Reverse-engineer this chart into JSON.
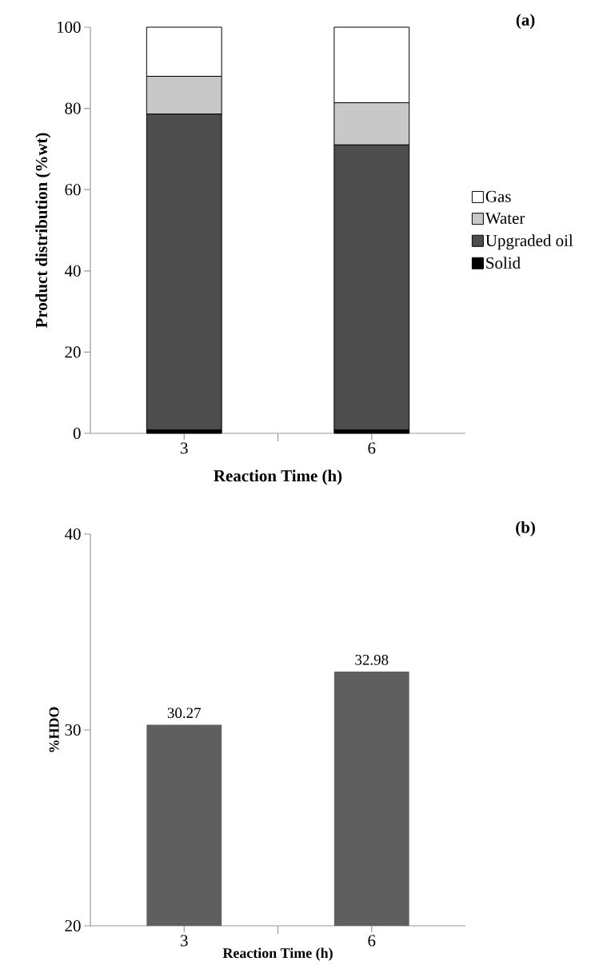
{
  "chart_data": [
    {
      "type": "bar",
      "stacked": true,
      "xlabel": "Reaction  Time (h)",
      "ylabel": "Product distribution (%wt)",
      "categories": [
        "3",
        "6"
      ],
      "series": [
        {
          "name": "Solid",
          "color": "#000000",
          "values": [
            0.8,
            0.8
          ]
        },
        {
          "name": "Upgraded oil",
          "color": "#4d4d4d",
          "values": [
            77.8,
            70.2
          ]
        },
        {
          "name": "Water",
          "color": "#c8c8c8",
          "values": [
            9.3,
            10.4
          ]
        },
        {
          "name": "Gas",
          "color": "#ffffff",
          "values": [
            12.1,
            18.6
          ]
        }
      ],
      "ylim": [
        0,
        100
      ],
      "yticks": [
        0,
        20,
        40,
        60,
        80,
        100
      ],
      "legend": "right",
      "annotations": [
        "(a)"
      ]
    },
    {
      "type": "bar",
      "xlabel": "Reaction Time (h)",
      "ylabel": "%HDO",
      "categories": [
        "3",
        "6"
      ],
      "values": [
        30.27,
        32.98
      ],
      "color": "#5f5f5f",
      "data_labels": true,
      "ylim": [
        20,
        40
      ],
      "yticks": [
        20,
        30,
        40
      ],
      "annotations": [
        "(b)"
      ]
    }
  ]
}
